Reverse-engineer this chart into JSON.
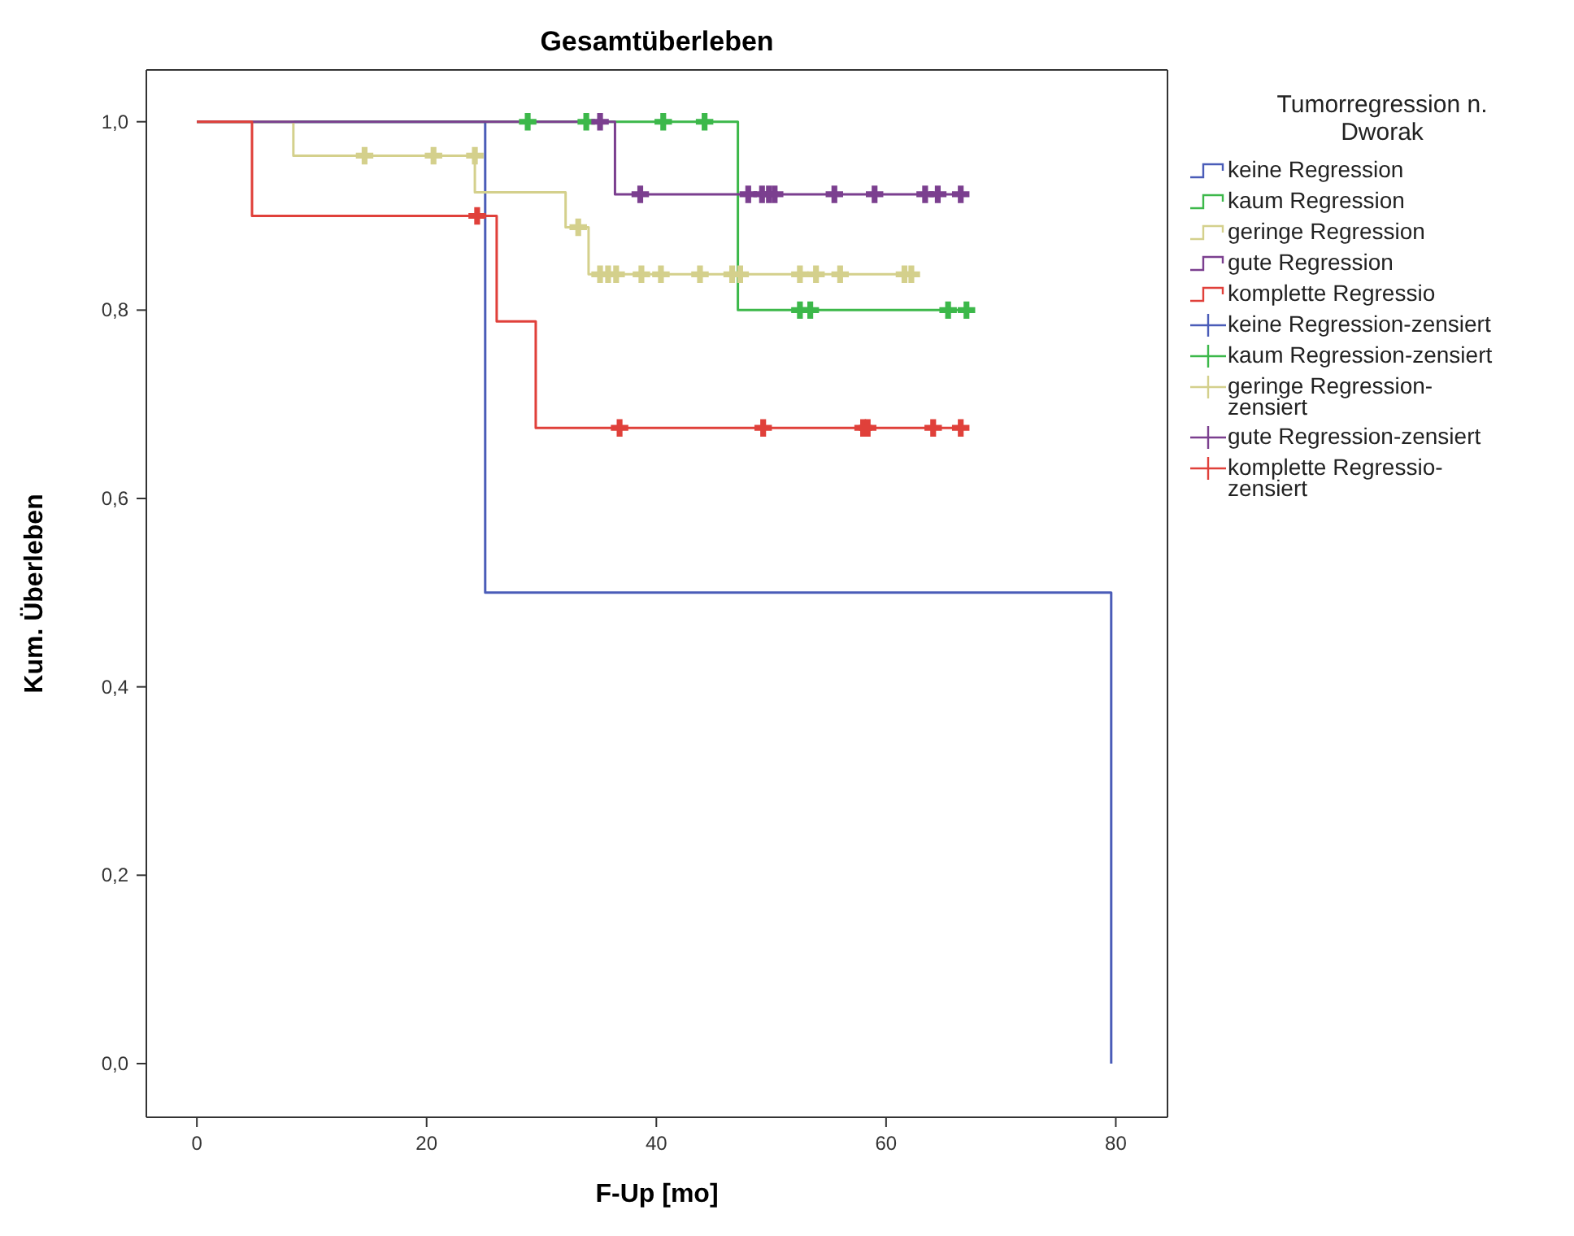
{
  "chart_data": {
    "type": "step",
    "title": "Gesamtüberleben",
    "xlabel": "F-Up [mo]",
    "ylabel": "Kum. Überleben",
    "legend_title": "Tumorregression n. Dworak",
    "legend": "right",
    "xlim": [
      -4.4,
      84.5
    ],
    "ylim": [
      -0.057,
      1.055
    ],
    "xticks": [
      0,
      20,
      40,
      60,
      80
    ],
    "yticks": [
      {
        "value": 0,
        "label": "0,0"
      },
      {
        "value": 0.2,
        "label": "0,2"
      },
      {
        "value": 0.4,
        "label": "0,4"
      },
      {
        "value": 0.6,
        "label": "0,6"
      },
      {
        "value": 0.8,
        "label": "0,8"
      },
      {
        "value": 1,
        "label": "1,0"
      }
    ],
    "series": [
      {
        "name": "keine Regression",
        "color": "#4a5cb8",
        "x": [
          0,
          25.1,
          79.6
        ],
        "values": [
          1,
          0.5,
          0
        ]
      },
      {
        "name": "kaum Regression",
        "color": "#3cb84a",
        "x": [
          0,
          47.1,
          67.0
        ],
        "values": [
          1,
          0.8,
          0.8
        ]
      },
      {
        "name": "geringe Regression",
        "color": "#d4d08c",
        "x": [
          0,
          8.4,
          24.2,
          32.1,
          34.1,
          62.2
        ],
        "values": [
          1,
          0.964,
          0.925,
          0.888,
          0.838,
          0.838
        ]
      },
      {
        "name": "gute Regression",
        "color": "#7b3f8f",
        "x": [
          0,
          36.4,
          66.5
        ],
        "values": [
          1,
          0.923,
          0.923
        ]
      },
      {
        "name": "komplette Regressio",
        "color": "#e0403a",
        "x": [
          0,
          4.8,
          26.1,
          29.5,
          66.5
        ],
        "values": [
          1,
          0.9,
          0.788,
          0.675,
          0.675
        ]
      },
      {
        "name": "keine Regression-zensiert",
        "type": "scatter",
        "marker": "cross",
        "color": "#4a5cb8"
      },
      {
        "name": "kaum Regression-zensiert",
        "type": "scatter",
        "marker": "cross",
        "color": "#3cb84a",
        "x": [
          28.8,
          33.9,
          40.6,
          44.2,
          52.5,
          53.4,
          65.4,
          67.0
        ],
        "values": [
          1,
          1,
          1,
          1,
          0.8,
          0.8,
          0.8,
          0.8
        ]
      },
      {
        "name": "geringe Regression-zensiert",
        "type": "scatter",
        "marker": "cross",
        "color": "#d4d08c",
        "x": [
          14.6,
          20.6,
          24.2,
          33.2,
          35.1,
          35.8,
          36.5,
          38.7,
          40.4,
          43.8,
          46.6,
          47.3,
          52.5,
          53.9,
          56.0,
          61.6,
          62.2
        ],
        "values": [
          0.964,
          0.964,
          0.964,
          0.888,
          0.838,
          0.838,
          0.838,
          0.838,
          0.838,
          0.838,
          0.838,
          0.838,
          0.838,
          0.838,
          0.838,
          0.838,
          0.838
        ]
      },
      {
        "name": "gute Regression-zensiert",
        "type": "scatter",
        "marker": "cross",
        "color": "#7b3f8f",
        "x": [
          35.1,
          38.6,
          48.0,
          49.2,
          49.8,
          50.3,
          55.5,
          59.0,
          63.4,
          64.5,
          66.5
        ],
        "values": [
          1,
          0.923,
          0.923,
          0.923,
          0.923,
          0.923,
          0.923,
          0.923,
          0.923,
          0.923,
          0.923
        ]
      },
      {
        "name": "komplette Regressio-zensiert",
        "type": "scatter",
        "marker": "cross",
        "color": "#e0403a",
        "x": [
          24.4,
          36.8,
          49.3,
          58.0,
          58.4,
          64.1,
          66.5
        ],
        "values": [
          0.9,
          0.675,
          0.675,
          0.675,
          0.675,
          0.675,
          0.675
        ]
      }
    ]
  }
}
